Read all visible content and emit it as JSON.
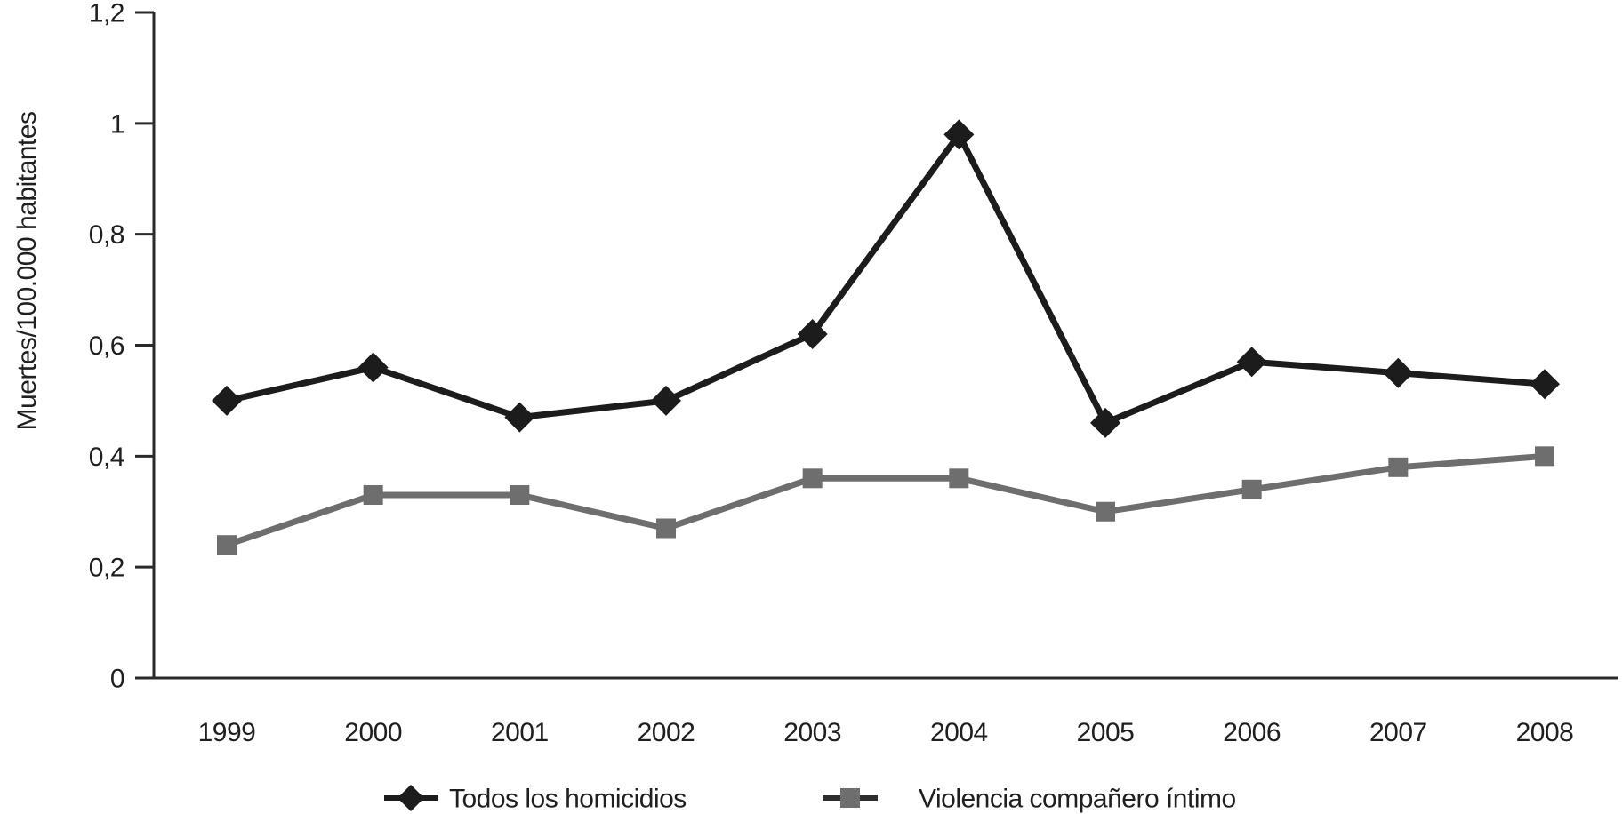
{
  "figure": {
    "background": "#ffffff"
  },
  "chart_data": {
    "type": "line",
    "title": "",
    "xlabel": "",
    "ylabel": "Muertes/100.000 habitantes",
    "categories": [
      "1999",
      "2000",
      "2001",
      "2002",
      "2003",
      "2004",
      "2005",
      "2006",
      "2007",
      "2008"
    ],
    "ylim": [
      0,
      1.2
    ],
    "y_ticks": [
      {
        "value": 0,
        "label": "0"
      },
      {
        "value": 0.2,
        "label": "0,2"
      },
      {
        "value": 0.4,
        "label": "0,4"
      },
      {
        "value": 0.6,
        "label": "0,6"
      },
      {
        "value": 0.8,
        "label": "0,8"
      },
      {
        "value": 1,
        "label": "1"
      },
      {
        "value": 1.2,
        "label": "1,2"
      }
    ],
    "grid": false,
    "legend_position": "bottom",
    "series": [
      {
        "name": "Todos los homicidios",
        "marker": "diamond",
        "color": "#1c1c1c",
        "values": [
          0.5,
          0.56,
          0.47,
          0.5,
          0.62,
          0.98,
          0.46,
          0.57,
          0.55,
          0.53
        ]
      },
      {
        "name": "Violencia compañero íntimo",
        "marker": "square",
        "color": "#6e6e6e",
        "legend_line_color": "#2e2e2e",
        "values": [
          0.24,
          0.33,
          0.33,
          0.27,
          0.36,
          0.36,
          0.3,
          0.34,
          0.38,
          0.4
        ]
      }
    ],
    "axis_color": "#2a2a2a",
    "text_color": "#1f1f1f"
  }
}
